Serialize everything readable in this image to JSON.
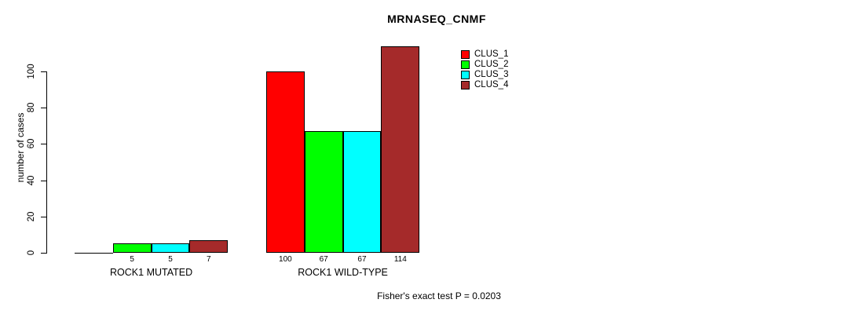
{
  "chart_data": {
    "type": "bar",
    "title": "MRNASEQ_CNMF",
    "ylabel": "number of cases",
    "xlabel": "",
    "caption": "Fisher's exact test P = 0.0203",
    "groups": [
      {
        "label": "ROCK1 MUTATED",
        "bar_labels": [
          "",
          "5",
          "5",
          "7"
        ]
      },
      {
        "label": "ROCK1 WILD-TYPE",
        "bar_labels": [
          "100",
          "67",
          "67",
          "114"
        ]
      }
    ],
    "series": [
      {
        "name": "CLUS_1",
        "color": "#ff0000",
        "values": [
          0,
          100
        ]
      },
      {
        "name": "CLUS_2",
        "color": "#00ff00",
        "values": [
          5,
          67
        ]
      },
      {
        "name": "CLUS_3",
        "color": "#00ffff",
        "values": [
          5,
          67
        ]
      },
      {
        "name": "CLUS_4",
        "color": "#a52a2a",
        "values": [
          7,
          114
        ]
      }
    ],
    "yticks": [
      0,
      20,
      40,
      60,
      80,
      100
    ],
    "ylim": [
      0,
      120
    ],
    "legend_position": "top-right",
    "grid": false,
    "axis_color": "#000000",
    "background_color": "#ffffff"
  }
}
